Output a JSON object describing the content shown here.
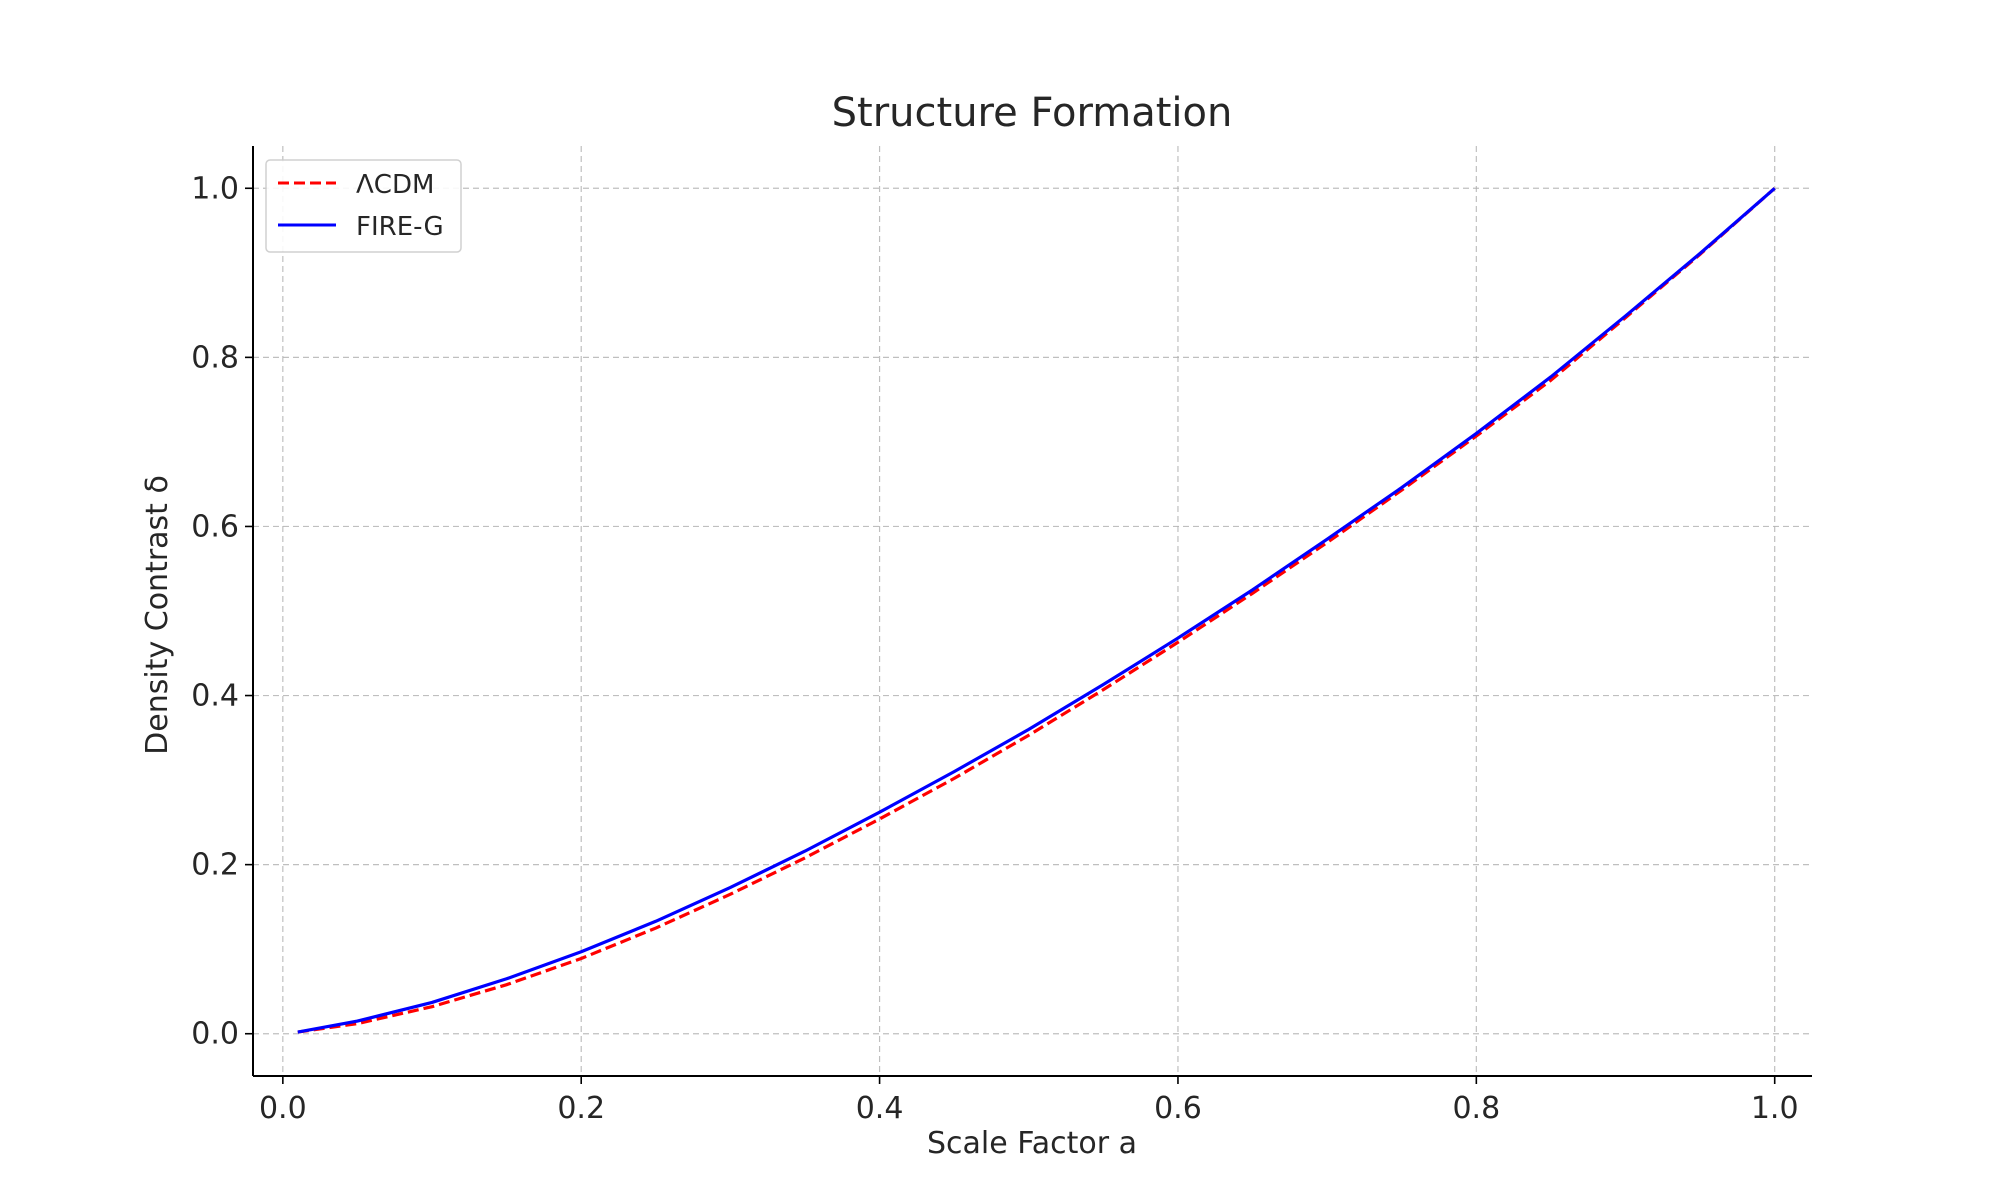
{
  "chart_data": {
    "type": "line",
    "title": "Structure Formation",
    "xlabel": "Scale Factor a",
    "ylabel": "Density Contrast δ",
    "xlim": [
      -0.02,
      1.025
    ],
    "ylim": [
      -0.05,
      1.05
    ],
    "x_ticks": [
      0.0,
      0.2,
      0.4,
      0.6,
      0.8,
      1.0
    ],
    "x_tick_labels": [
      "0.0",
      "0.2",
      "0.4",
      "0.6",
      "0.8",
      "1.0"
    ],
    "y_ticks": [
      0.0,
      0.2,
      0.4,
      0.6,
      0.8,
      1.0
    ],
    "y_tick_labels": [
      "0.0",
      "0.2",
      "0.4",
      "0.6",
      "0.8",
      "1.0"
    ],
    "grid": true,
    "legend_position": "top-left",
    "series": [
      {
        "name": "ΛCDM",
        "color": "#ff0000",
        "style": "dashed",
        "x": [
          0.01,
          0.05,
          0.1,
          0.15,
          0.2,
          0.25,
          0.3,
          0.35,
          0.4,
          0.45,
          0.5,
          0.55,
          0.6,
          0.65,
          0.7,
          0.75,
          0.8,
          0.85,
          0.9,
          0.95,
          1.0
        ],
        "y": [
          0.002,
          0.012,
          0.032,
          0.058,
          0.089,
          0.125,
          0.165,
          0.208,
          0.254,
          0.302,
          0.353,
          0.407,
          0.463,
          0.521,
          0.581,
          0.643,
          0.707,
          0.773,
          0.847,
          0.922,
          1.0
        ]
      },
      {
        "name": "FIRE-G",
        "color": "#0000ff",
        "style": "solid",
        "x": [
          0.01,
          0.05,
          0.1,
          0.15,
          0.2,
          0.25,
          0.3,
          0.35,
          0.4,
          0.45,
          0.5,
          0.55,
          0.6,
          0.65,
          0.7,
          0.75,
          0.8,
          0.85,
          0.9,
          0.95,
          1.0
        ],
        "y": [
          0.002,
          0.015,
          0.037,
          0.065,
          0.097,
          0.133,
          0.173,
          0.216,
          0.262,
          0.31,
          0.36,
          0.413,
          0.468,
          0.525,
          0.585,
          0.646,
          0.71,
          0.777,
          0.849,
          0.923,
          1.0
        ]
      }
    ]
  }
}
